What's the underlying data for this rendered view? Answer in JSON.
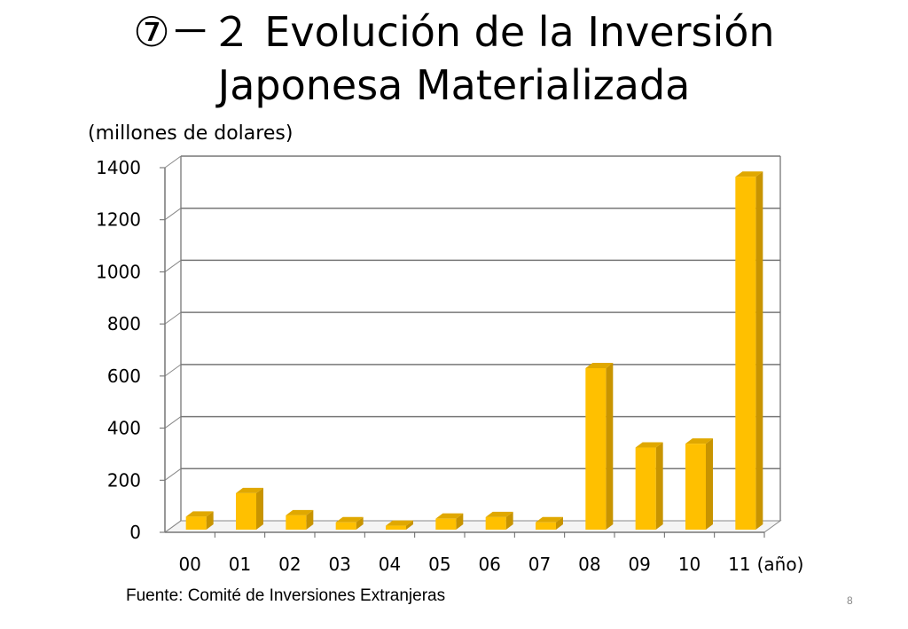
{
  "slide": {
    "title_line1": "⑦－２ Evolución de la Inversión",
    "title_line2": "Japonesa Materializada",
    "units_label": "(millones de dolares)",
    "source": "Fuente: Comité de Inversiones Extranjeras",
    "page_number": "8"
  },
  "chart_data": {
    "type": "bar",
    "title": "⑦－２ Evolución de la Inversión Japonesa Materializada",
    "ylabel": "(millones de dolares)",
    "xlabel": "(año)",
    "categories": [
      "00",
      "01",
      "02",
      "03",
      "04",
      "05",
      "06",
      "07",
      "08",
      "09",
      "10",
      "11"
    ],
    "values": [
      50,
      140,
      55,
      28,
      15,
      42,
      48,
      28,
      620,
      315,
      330,
      1355
    ],
    "ylim": [
      0,
      1400
    ],
    "yticks": [
      0,
      200,
      400,
      600,
      800,
      1000,
      1200,
      1400
    ],
    "grid": true,
    "bar_color": "#FFC000",
    "bar_side_color": "#C89400",
    "bar_top_color": "#E0A800"
  }
}
